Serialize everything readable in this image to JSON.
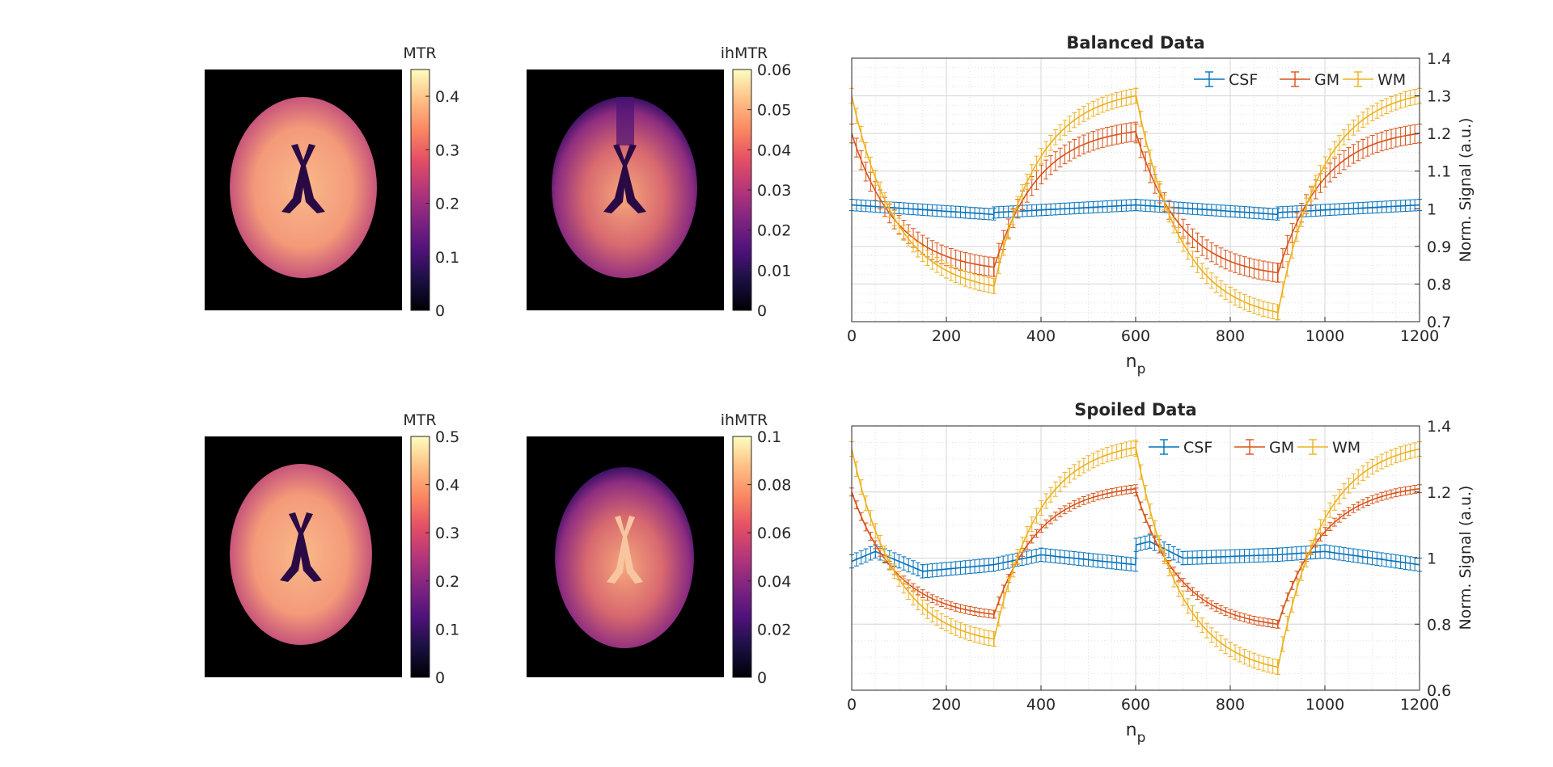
{
  "colors": {
    "csf": "#0072BD",
    "gm": "#D95319",
    "wm": "#EDB120",
    "axis": "#262626",
    "grid": "#dfdfdf",
    "background": "#000000"
  },
  "maps": [
    {
      "id": "mtr-top",
      "title": "MTR",
      "colorbar_ticks": [
        "0",
        "0.1",
        "0.2",
        "0.3",
        "0.4"
      ],
      "colorbar_max": 0.45
    },
    {
      "id": "ihmtr-top",
      "title": "ihMTR",
      "colorbar_ticks": [
        "0",
        "0.01",
        "0.02",
        "0.03",
        "0.04",
        "0.05",
        "0.06"
      ],
      "colorbar_max": 0.06
    },
    {
      "id": "mtr-bottom",
      "title": "MTR",
      "colorbar_ticks": [
        "0",
        "0.1",
        "0.2",
        "0.3",
        "0.4",
        "0.5"
      ],
      "colorbar_max": 0.5
    },
    {
      "id": "ihmtr-bottom",
      "title": "ihMTR",
      "colorbar_ticks": [
        "0",
        "0.02",
        "0.04",
        "0.06",
        "0.08",
        "0.1"
      ],
      "colorbar_max": 0.1
    }
  ],
  "chart_data": [
    {
      "type": "line",
      "title": "Balanced Data",
      "xlabel": "n",
      "xlabel_sub": "p",
      "ylabel": "Norm. Signal (a.u.)",
      "xlim": [
        0,
        1200
      ],
      "ylim": [
        0.7,
        1.4
      ],
      "xticks": [
        0,
        200,
        400,
        600,
        800,
        1000,
        1200
      ],
      "yticks": [
        0.7,
        0.8,
        0.9,
        1,
        1.1,
        1.2,
        1.3,
        1.4
      ],
      "ytick_labels": [
        "0.7",
        "0.8",
        "0.9",
        "1",
        "1.1",
        "1.2",
        "1.3",
        "1.4"
      ],
      "legend_position": "top-right",
      "period": 600,
      "series": [
        {
          "name": "CSF",
          "x": [
            0,
            300,
            301,
            600,
            601,
            900,
            901,
            1200
          ],
          "y": [
            1.01,
            0.985,
            0.99,
            1.01,
            1.01,
            0.985,
            0.99,
            1.01
          ],
          "err": 0.015
        },
        {
          "name": "GM",
          "x": [
            0,
            300,
            301,
            600,
            601,
            900,
            901,
            1200
          ],
          "y": [
            1.2,
            0.845,
            0.845,
            1.205,
            1.2,
            0.83,
            0.83,
            1.2
          ],
          "err": 0.025
        },
        {
          "name": "WM",
          "x": [
            0,
            300,
            301,
            600,
            601,
            900,
            901,
            1200
          ],
          "y": [
            1.3,
            0.795,
            0.795,
            1.3,
            1.3,
            0.725,
            0.725,
            1.3
          ],
          "err": 0.02
        }
      ]
    },
    {
      "type": "line",
      "title": "Spoiled Data",
      "xlabel": "n",
      "xlabel_sub": "p",
      "ylabel": "Norm. Signal (a.u.)",
      "xlim": [
        0,
        1200
      ],
      "ylim": [
        0.6,
        1.4
      ],
      "xticks": [
        0,
        200,
        400,
        600,
        800,
        1000,
        1200
      ],
      "yticks": [
        0.6,
        0.8,
        1,
        1.2,
        1.4
      ],
      "ytick_labels": [
        "0.6",
        "0.8",
        "1",
        "1.2",
        "1.4"
      ],
      "legend_position": "top-right",
      "period": 600,
      "series": [
        {
          "name": "CSF",
          "x": [
            0,
            50,
            150,
            300,
            400,
            600,
            601,
            630,
            700,
            900,
            1000,
            1200
          ],
          "y": [
            0.99,
            1.02,
            0.96,
            0.98,
            1.01,
            0.98,
            1.04,
            1.05,
            1.0,
            1.01,
            1.02,
            0.98
          ],
          "err": 0.02
        },
        {
          "name": "GM",
          "x": [
            0,
            300,
            301,
            600,
            601,
            900,
            901,
            1200
          ],
          "y": [
            1.2,
            0.83,
            0.83,
            1.21,
            1.2,
            0.8,
            0.8,
            1.21
          ],
          "err": 0.012
        },
        {
          "name": "WM",
          "x": [
            0,
            300,
            301,
            600,
            601,
            900,
            901,
            1200
          ],
          "y": [
            1.33,
            0.755,
            0.755,
            1.335,
            1.33,
            0.67,
            0.67,
            1.33
          ],
          "err": 0.022
        }
      ]
    }
  ]
}
